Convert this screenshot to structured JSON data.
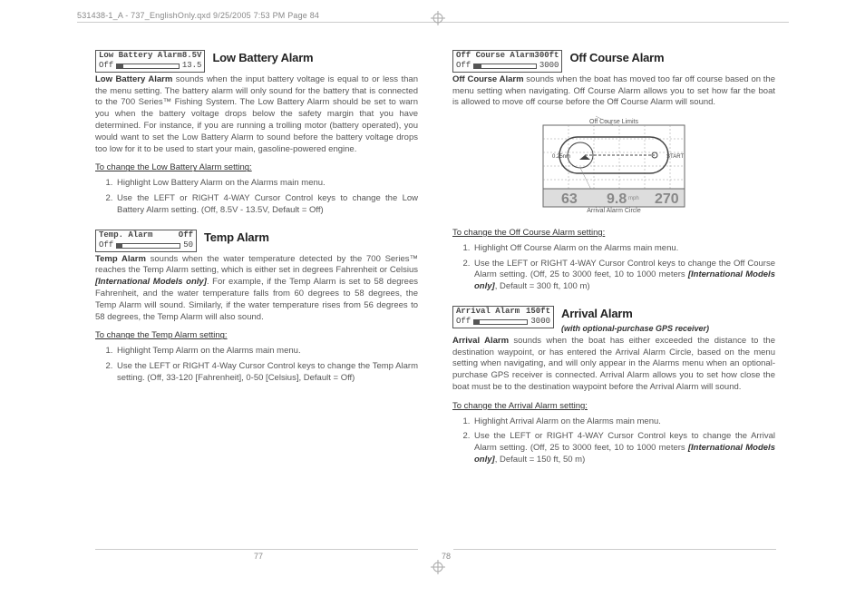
{
  "header": {
    "text": "531438-1_A - 737_EnglishOnly.qxd   9/25/2005   7:53 PM   Page 84"
  },
  "left": {
    "low_battery": {
      "lcd_label": "Low Battery Alarm",
      "lcd_value": "8.5V",
      "lcd_row2_left": "Off",
      "lcd_row2_right": "13.5",
      "lcd_fill_pct": 10,
      "title": "Low Battery Alarm",
      "bold_intro": "Low Battery Alarm",
      "body": " sounds when the input battery voltage is equal to or less than the menu setting. The battery alarm will only sound for the battery that is connected to the 700 Series™ Fishing System. The Low Battery Alarm should be set to warn you when the battery voltage drops below the safety margin that you have determined. For instance, if you are running a trolling motor (battery operated), you would want to set the Low Battery Alarm to sound before the battery voltage drops too low for it to be used to start your main, gasoline-powered engine.",
      "change_head": "To change the Low Battery Alarm setting:",
      "steps": [
        "Highlight Low Battery Alarm on the Alarms main menu.",
        "Use the LEFT or RIGHT 4-WAY Cursor Control keys to change the Low Battery Alarm setting. (Off, 8.5V - 13.5V,  Default = Off)"
      ]
    },
    "temp": {
      "lcd_label": "Temp. Alarm",
      "lcd_value": "Off",
      "lcd_row2_left": "Off",
      "lcd_row2_right": "50",
      "lcd_fill_pct": 8,
      "title": "Temp Alarm",
      "bold_intro": "Temp Alarm",
      "body1": " sounds when the water temperature detected by the 700 Series™ reaches the Temp Alarm setting, which is either set in degrees Fahrenheit or Celsius ",
      "body_em": "[International Models only]",
      "body2": ". For example, if the Temp Alarm is set to 58 degrees Fahrenheit, and the water temperature falls from 60 degrees to 58 degrees, the Temp Alarm will sound. Similarly, if the water temperature rises from 56 degrees to 58 degrees, the Temp Alarm will also sound.",
      "change_head": "To change the Temp Alarm setting:",
      "steps": [
        "Highlight Temp Alarm on the Alarms main menu.",
        "Use the LEFT or RIGHT 4-Way Cursor Control keys to change the Temp Alarm setting. (Off, 33-120 [Fahrenheit], 0-50 [Celsius], Default = Off)"
      ]
    }
  },
  "right": {
    "off_course": {
      "lcd_label": "Off Course Alarm",
      "lcd_value": "300ft",
      "lcd_row2_left": "Off",
      "lcd_row2_right": "3000",
      "lcd_fill_pct": 12,
      "title": "Off Course Alarm",
      "bold_intro": "Off Course Alarm",
      "body": " sounds when the boat has moved too far off course based on the menu setting when navigating. Off Course Alarm allows you to set how far the boat is allowed to move off course before the Off Course Alarm will sound.",
      "diagram_top": "Off Course Limits",
      "diagram_bottom": "Arrival Alarm Circle",
      "diagram_big1": "63",
      "diagram_mid": "9.8",
      "diagram_big2": "270",
      "change_head": "To change the Off Course Alarm setting:",
      "steps": [
        "Highlight Off Course Alarm on the Alarms main  menu.",
        "Use the LEFT or RIGHT 4-WAY Cursor Control keys to change the Off Course Alarm setting. (Off, 25 to 3000 feet, 10 to 1000 meters <em>[International Models only]</em>, Default = 300 ft, 100 m)"
      ]
    },
    "arrival": {
      "lcd_label": "Arrival Alarm",
      "lcd_value": "150ft",
      "lcd_row2_left": "Off",
      "lcd_row2_right": "3000",
      "lcd_fill_pct": 10,
      "title": "Arrival Alarm",
      "subtitle": "(with optional-purchase GPS receiver)",
      "bold_intro": "Arrival Alarm",
      "body": " sounds when the boat has either exceeded the distance to the destination waypoint, or has entered the Arrival Alarm Circle, based on the menu setting when navigating, and will only appear in the Alarms menu when an optional-purchase GPS receiver is connected. Arrival Alarm allows you to set how close the boat must be to the destination waypoint before the Arrival Alarm will sound.",
      "change_head": "To change the Arrival Alarm setting:",
      "steps": [
        "Highlight Arrival Alarm on the Alarms main menu.",
        "Use the LEFT or RIGHT 4-WAY Cursor Control keys to change the Arrival Alarm setting. (Off, 25 to 3000 feet, 10 to 1000 meters <em>[International Models only]</em>, Default = 150 ft, 50 m)"
      ]
    }
  },
  "page_left": "77",
  "page_right": "78"
}
